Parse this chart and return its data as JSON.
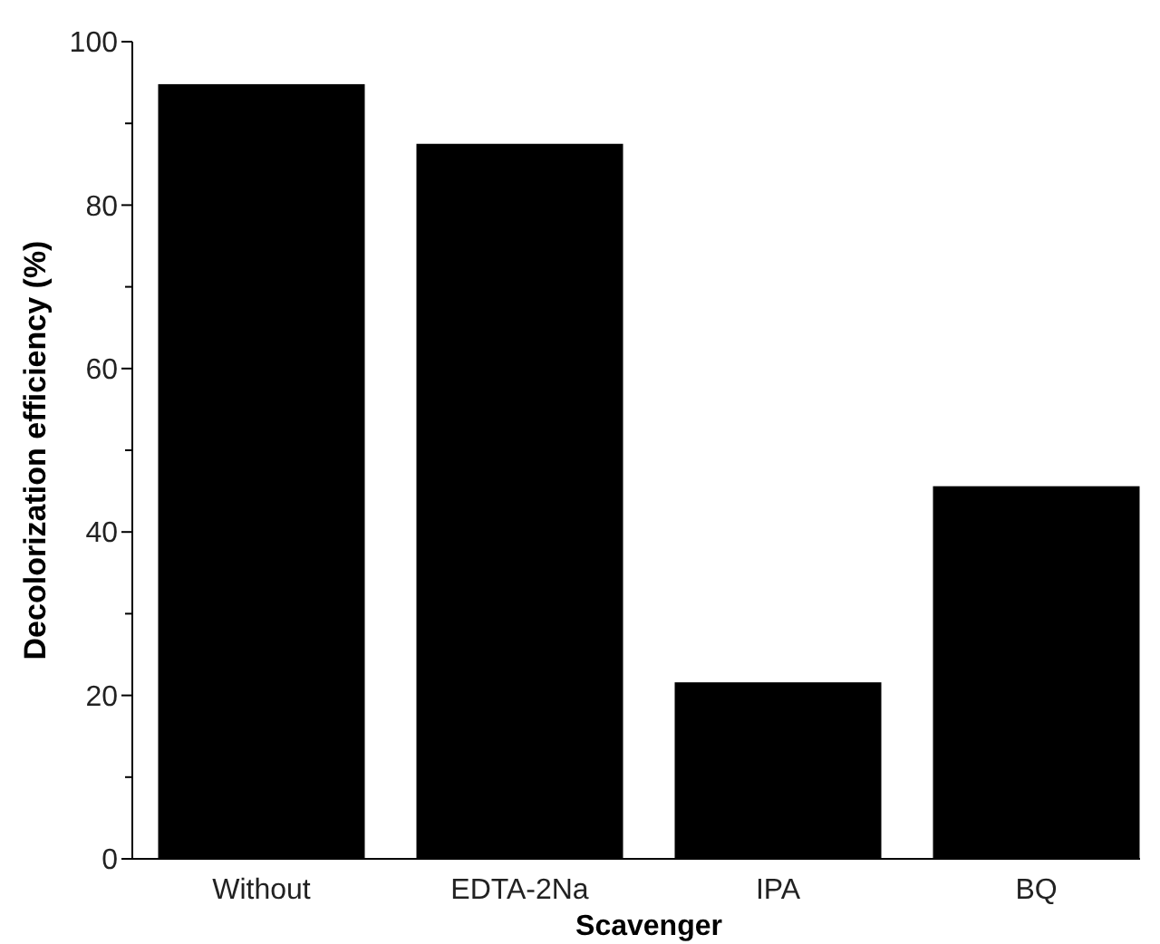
{
  "chart_data": {
    "type": "bar",
    "xlabel": "Scavenger",
    "ylabel": "Decolorization efficiency (%)",
    "categories": [
      "Without",
      "EDTA-2Na",
      "IPA",
      "BQ"
    ],
    "values": [
      94.8,
      87.5,
      21.6,
      45.6
    ],
    "color": "#000000",
    "ylim": [
      0,
      100
    ],
    "yticks": [
      0,
      {
        "value": 10,
        "label": null
      },
      20,
      {
        "value": 30,
        "label": null
      },
      40,
      {
        "value": 50,
        "label": null
      },
      60,
      {
        "value": 70,
        "label": null
      },
      80,
      {
        "value": 90,
        "label": null
      },
      100
    ],
    "grid": false
  }
}
